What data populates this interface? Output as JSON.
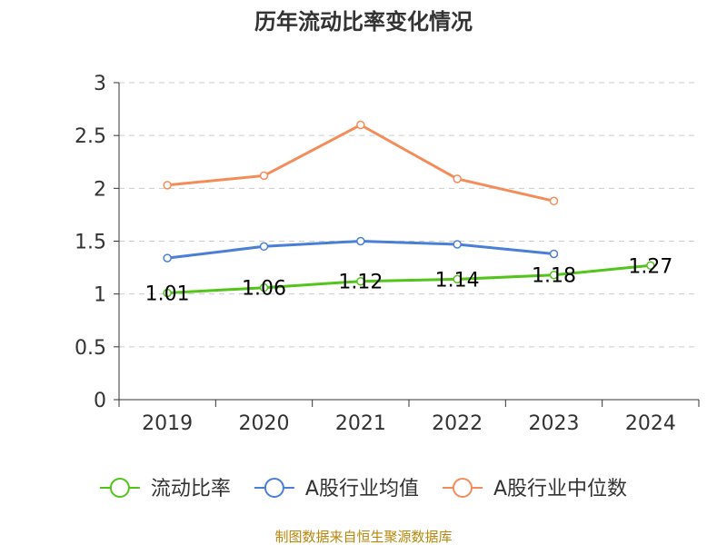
{
  "chart_data": {
    "type": "line",
    "title": "历年流动比率变化情况",
    "categories": [
      "2019",
      "2020",
      "2021",
      "2022",
      "2023",
      "2024"
    ],
    "ylim": [
      0,
      3
    ],
    "yticks": [
      0,
      0.5,
      1,
      1.5,
      2,
      2.5,
      3
    ],
    "grid": true,
    "legend_position": "bottom",
    "series": [
      {
        "name": "流动比率",
        "color": "#52c41a",
        "values": [
          1.01,
          1.06,
          1.12,
          1.14,
          1.18,
          1.27
        ],
        "data_labels": [
          "1.01",
          "1.06",
          "1.12",
          "1.14",
          "1.18",
          "1.27"
        ]
      },
      {
        "name": "A股行业均值",
        "color": "#4a7fd6",
        "values": [
          1.34,
          1.45,
          1.5,
          1.47,
          1.38,
          null
        ]
      },
      {
        "name": "A股行业中位数",
        "color": "#f48c5a",
        "values": [
          2.03,
          2.12,
          2.6,
          2.09,
          1.88,
          null
        ]
      }
    ]
  },
  "source_note": "制图数据来自恒生聚源数据库"
}
